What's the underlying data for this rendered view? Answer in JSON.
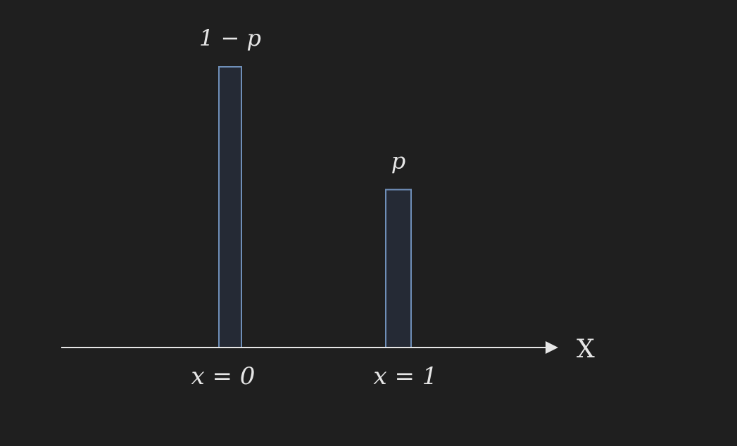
{
  "chart_data": {
    "type": "bar",
    "title": "",
    "xlabel": "X",
    "ylabel": "",
    "categories": [
      "x = 0",
      "x = 1"
    ],
    "values": [
      0.64,
      0.36
    ],
    "bar_labels": [
      "1 − p",
      "p"
    ],
    "ylim": [
      0,
      0.64
    ],
    "grid": false,
    "legend": "none"
  },
  "colors": {
    "background": "#1f1f1f",
    "bar_fill": "#252a35",
    "bar_stroke": "#6f8fb8",
    "axis": "#e6e6e6",
    "text": "#e6e6e6"
  }
}
